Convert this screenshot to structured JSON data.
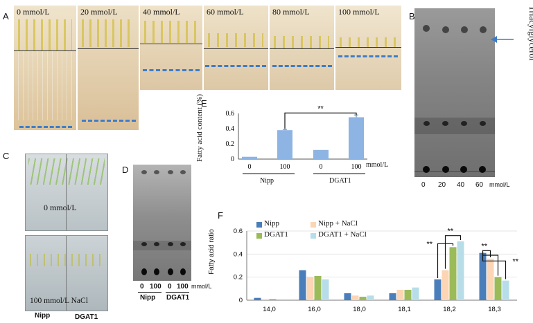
{
  "panel_labels": {
    "a": "A",
    "b": "B",
    "c": "C",
    "d": "D",
    "e": "E",
    "f": "F"
  },
  "panel_a": {
    "concentrations": [
      "0 mmol/L",
      "20 mmol/L",
      "40 mmol/L",
      "60 mmol/L",
      "80 mmol/L",
      "100 mmol/L"
    ]
  },
  "panel_b": {
    "annotation": "Triacylglycerol",
    "x_ticks": [
      "0",
      "20",
      "40",
      "60"
    ],
    "unit": "mmol/L"
  },
  "panel_c": {
    "top_label": "0 mmol/L",
    "bottom_label": "100 mmol/L NaCl",
    "lines": [
      "Nipp",
      "DGAT1"
    ]
  },
  "panel_d": {
    "x_ticks": [
      "0",
      "100",
      "0",
      "100"
    ],
    "unit": "mmol/L",
    "lines": [
      "Nipp",
      "DGAT1"
    ]
  },
  "panel_e": {
    "significance": "**",
    "unit": "mmol/L",
    "chart_data": {
      "type": "bar",
      "categories": [
        "0",
        "100",
        "0",
        "100"
      ],
      "groups": [
        "Nipp",
        "DGAT1"
      ],
      "values": [
        0.03,
        0.38,
        0.12,
        0.55
      ],
      "errors": [
        0.0,
        0.01,
        0.0,
        0.03
      ],
      "ylabel": "Fatty acid content (%)",
      "ylim": [
        0,
        0.6
      ],
      "yticks": [
        "0",
        "0.2",
        "0.4",
        "0.6"
      ],
      "color": "#8db4e2"
    }
  },
  "panel_f": {
    "significance": "**",
    "chart_data": {
      "type": "bar",
      "categories": [
        "14,0",
        "16,0",
        "18,0",
        "18,1",
        "18,2",
        "18,3"
      ],
      "ylabel": "Fatty acid ratio",
      "ylim": [
        0,
        0.6
      ],
      "yticks": [
        "0",
        "0.2",
        "0.4",
        "0.6"
      ],
      "legend_position": "top",
      "series": [
        {
          "name": "Nipp",
          "color": "#4a7ebb",
          "values": [
            0.02,
            0.26,
            0.06,
            0.06,
            0.18,
            0.41
          ]
        },
        {
          "name": "Nipp + NaCl",
          "color": "#fcd5b5",
          "values": [
            0.01,
            0.2,
            0.04,
            0.09,
            0.26,
            0.36
          ]
        },
        {
          "name": "DGAT1",
          "color": "#9bbb59",
          "values": [
            0.01,
            0.21,
            0.03,
            0.09,
            0.46,
            0.2
          ]
        },
        {
          "name": "DGAT1 + NaCl",
          "color": "#b7dee8",
          "values": [
            0.0,
            0.18,
            0.04,
            0.11,
            0.51,
            0.17
          ]
        }
      ]
    }
  }
}
